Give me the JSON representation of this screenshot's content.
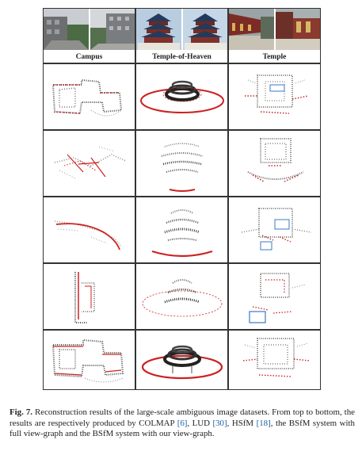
{
  "figure": {
    "datasets": [
      {
        "name": "Campus"
      },
      {
        "name": "Temple-of-Heaven"
      },
      {
        "name": "Temple"
      }
    ],
    "rows": [
      "COLMAP",
      "LUD",
      "HSfM",
      "BSfM full view-graph",
      "BSfM our view-graph"
    ],
    "colors": {
      "points": "#555555",
      "cameras": "#cc2222",
      "highlight": "#3a78c8"
    }
  },
  "caption": {
    "label": "Fig. 7.",
    "text_1": " Reconstruction results of the large-scale ambiguous image datasets. From top to bottom, the results are respectively produced by COLMAP ",
    "ref_1": "[6]",
    "text_2": ", LUD ",
    "ref_2": "[30]",
    "text_3": ", HSfM ",
    "ref_3": "[18]",
    "text_4": ", the BSfM system with full view-graph and the BSfM system with our view-graph."
  }
}
